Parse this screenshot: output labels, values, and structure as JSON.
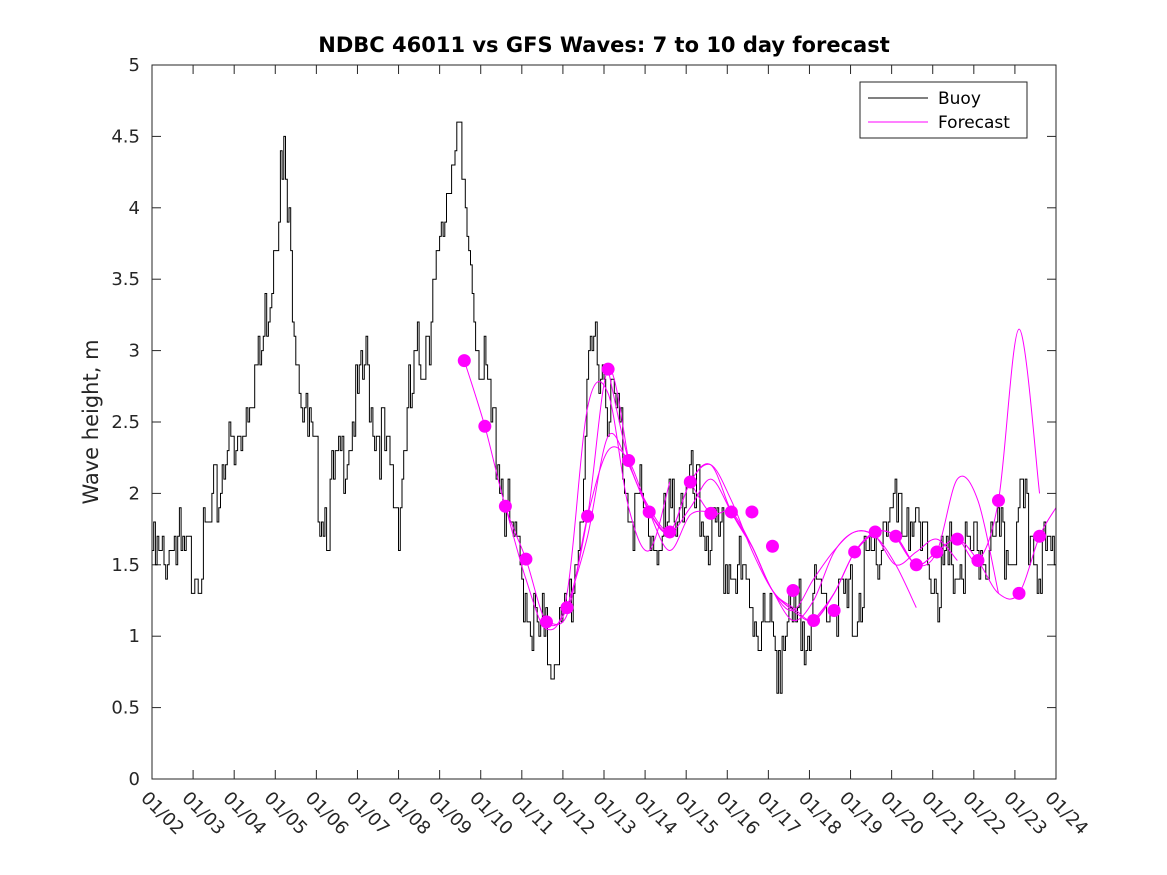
{
  "chart_data": {
    "type": "line",
    "title": "NDBC 46011 vs GFS Waves: 7 to 10 day forecast",
    "xlabel": "",
    "ylabel": "Wave height, m",
    "ylim": [
      0,
      5
    ],
    "yticks": [
      "0",
      "0.5",
      "1",
      "1.5",
      "2",
      "2.5",
      "3",
      "3.5",
      "4",
      "4.5",
      "5"
    ],
    "xlim_days": [
      0,
      22
    ],
    "xticks": [
      "01/02",
      "01/03",
      "01/04",
      "01/05",
      "01/06",
      "01/07",
      "01/08",
      "01/09",
      "01/10",
      "01/11",
      "01/12",
      "01/13",
      "01/14",
      "01/15",
      "01/16",
      "01/17",
      "01/18",
      "01/19",
      "01/20",
      "01/21",
      "01/22",
      "01/23",
      "01/24"
    ],
    "legend": {
      "position": "top-right",
      "entries": [
        "Buoy",
        "Forecast"
      ]
    },
    "colors": {
      "buoy": "#000000",
      "forecast": "#ff00ff"
    },
    "series": [
      {
        "name": "Buoy",
        "x_days": [
          0,
          0.2,
          0.4,
          0.5,
          0.6,
          0.8,
          1.0,
          1.2,
          1.4,
          1.6,
          1.8,
          2.0,
          2.2,
          2.4,
          2.6,
          2.8,
          3.0,
          3.2,
          3.4,
          3.6,
          3.8,
          4.0,
          4.2,
          4.4,
          4.6,
          4.8,
          5.0,
          5.2,
          5.4,
          5.6,
          5.8,
          6.0,
          6.2,
          6.4,
          6.6,
          6.8,
          7.0,
          7.2,
          7.4,
          7.6,
          7.8,
          8.0,
          8.2,
          8.4,
          8.6,
          8.8,
          9.0,
          9.2,
          9.4,
          9.6,
          9.8,
          10.0,
          10.2,
          10.4,
          10.6,
          10.8,
          11.0,
          11.2,
          11.4,
          11.6,
          11.8,
          12.0,
          12.2,
          12.4,
          12.6,
          12.8,
          13.0,
          13.2,
          13.4,
          13.6,
          13.8,
          14.0,
          14.2,
          14.4,
          14.6,
          14.8,
          15.0,
          15.2,
          15.4,
          15.6,
          15.8,
          16.0,
          16.2,
          16.4,
          16.6,
          16.8,
          17.0,
          17.2,
          17.4,
          17.6,
          17.8,
          18.0,
          18.2,
          18.4,
          18.6,
          18.8,
          19.0,
          19.2,
          19.4,
          19.6,
          19.8,
          20.0,
          20.2,
          20.4,
          20.6,
          20.8,
          21.0,
          21.2,
          21.4,
          21.6,
          21.8,
          22.0
        ],
        "values": [
          1.55,
          1.5,
          1.6,
          1.8,
          1.6,
          1.5,
          1.55,
          1.6,
          1.7,
          2.0,
          2.4,
          2.2,
          2.5,
          2.8,
          2.9,
          3.3,
          3.9,
          4.3,
          3.5,
          2.9,
          2.4,
          2.1,
          1.9,
          2.0,
          2.2,
          2.5,
          2.6,
          2.9,
          2.5,
          2.4,
          2.1,
          1.9,
          2.5,
          2.8,
          3.0,
          3.3,
          3.6,
          4.2,
          4.7,
          3.9,
          3.5,
          2.9,
          2.6,
          2.3,
          1.9,
          1.6,
          1.4,
          1.2,
          1.0,
          0.9,
          0.95,
          1.0,
          1.3,
          1.8,
          2.6,
          3.1,
          2.8,
          2.6,
          2.4,
          2.0,
          1.9,
          1.8,
          1.7,
          1.6,
          1.8,
          2.0,
          2.0,
          1.95,
          1.8,
          1.7,
          1.6,
          1.5,
          1.4,
          1.3,
          1.25,
          1.1,
          1.0,
          0.95,
          0.95,
          1.0,
          1.1,
          1.2,
          1.2,
          1.25,
          1.3,
          1.2,
          1.2,
          1.25,
          1.4,
          1.6,
          1.8,
          1.9,
          1.8,
          1.9,
          1.7,
          1.6,
          1.5,
          1.4,
          1.45,
          1.5,
          1.5,
          1.55,
          1.6,
          1.55,
          1.6,
          1.6,
          1.7,
          1.8,
          1.7,
          1.6,
          1.5,
          1.6
        ]
      }
    ],
    "forecast_runs": [
      {
        "x_days": [
          7.6,
          8.1,
          8.6,
          9.1,
          9.6,
          10.1,
          10.6,
          11.1,
          11.6
        ],
        "values": [
          2.93,
          2.47,
          1.91,
          1.54,
          1.1,
          1.2,
          1.84,
          2.87,
          2.23
        ]
      },
      {
        "x_days": [
          8.6,
          9.1,
          9.6,
          10.1,
          10.6,
          11.1,
          11.6,
          12.1,
          12.6
        ],
        "values": [
          1.91,
          1.4,
          1.05,
          1.3,
          2.6,
          2.7,
          1.9,
          1.6,
          2.08
        ]
      },
      {
        "x_days": [
          9.6,
          10.1,
          10.6,
          11.1,
          11.6,
          12.1,
          12.6,
          13.1,
          13.6
        ],
        "values": [
          1.1,
          1.15,
          1.84,
          2.3,
          2.23,
          1.87,
          1.6,
          1.85,
          1.87
        ]
      },
      {
        "x_days": [
          10.1,
          10.6,
          11.1,
          11.6,
          12.1,
          12.6,
          13.1,
          13.6,
          14.1,
          14.6
        ],
        "values": [
          1.2,
          1.7,
          2.4,
          2.2,
          1.87,
          1.73,
          2.08,
          2.2,
          1.87,
          1.63
        ]
      },
      {
        "x_days": [
          11.1,
          11.6,
          12.1,
          12.6,
          13.1,
          13.6,
          14.1,
          14.6,
          15.1,
          15.6
        ],
        "values": [
          2.87,
          2.23,
          1.9,
          1.73,
          1.9,
          2.1,
          1.87,
          1.63,
          1.32,
          1.18
        ]
      },
      {
        "x_days": [
          12.1,
          12.6,
          13.1,
          13.6,
          14.1,
          14.6,
          15.1,
          15.6,
          16.1,
          16.6
        ],
        "values": [
          1.87,
          1.73,
          2.08,
          2.2,
          1.95,
          1.6,
          1.32,
          1.18,
          1.11,
          1.3
        ]
      },
      {
        "x_days": [
          13.1,
          13.6,
          14.1,
          14.6,
          15.1,
          15.6,
          16.1,
          16.6,
          17.1,
          17.6
        ],
        "values": [
          2.08,
          1.86,
          1.87,
          1.63,
          1.32,
          1.2,
          1.11,
          1.3,
          1.59,
          1.73
        ]
      },
      {
        "x_days": [
          14.1,
          14.6,
          15.1,
          15.6,
          16.1,
          16.6,
          17.1,
          17.6,
          18.1,
          18.6
        ],
        "values": [
          1.87,
          1.63,
          1.32,
          1.18,
          1.4,
          1.6,
          1.73,
          1.7,
          1.5,
          1.2
        ]
      },
      {
        "x_days": [
          15.1,
          15.6,
          16.1,
          16.6,
          17.1,
          17.6,
          18.1,
          18.6,
          19.1,
          19.6
        ],
        "values": [
          1.32,
          1.11,
          1.25,
          1.59,
          1.73,
          1.7,
          1.5,
          1.59,
          1.68,
          1.53
        ]
      },
      {
        "x_days": [
          16.1,
          16.6,
          17.1,
          17.6,
          18.1,
          18.6,
          19.1,
          19.6,
          20.1,
          20.6
        ],
        "values": [
          1.11,
          1.3,
          1.59,
          1.73,
          1.7,
          1.5,
          1.59,
          2.1,
          1.95,
          1.3
        ]
      },
      {
        "x_days": [
          17.1,
          17.6,
          18.1,
          18.6,
          19.1,
          19.6,
          20.1,
          20.6,
          21.1,
          21.6
        ],
        "values": [
          1.59,
          1.73,
          1.7,
          1.5,
          1.59,
          1.68,
          1.53,
          1.95,
          3.15,
          2.0
        ]
      },
      {
        "x_days": [
          18.1,
          18.6,
          19.1,
          19.6,
          20.1,
          20.6,
          21.1,
          21.6,
          22.0
        ],
        "values": [
          1.7,
          1.5,
          1.59,
          1.68,
          1.53,
          1.3,
          1.3,
          1.7,
          1.9
        ]
      }
    ],
    "forecast_points": {
      "x_days": [
        7.6,
        8.1,
        8.6,
        9.1,
        9.6,
        10.1,
        10.6,
        11.1,
        11.6,
        12.1,
        12.6,
        13.1,
        13.6,
        14.1,
        14.6,
        15.1,
        15.6,
        16.1,
        16.6,
        17.1,
        17.6,
        18.1,
        18.6,
        19.1,
        19.6,
        20.1,
        20.6,
        21.1,
        21.6
      ],
      "values": [
        2.93,
        2.47,
        1.91,
        1.54,
        1.1,
        1.2,
        1.84,
        2.87,
        2.23,
        1.87,
        1.73,
        2.08,
        1.86,
        1.87,
        1.87,
        1.63,
        1.32,
        1.11,
        1.18,
        1.59,
        1.73,
        1.7,
        1.5,
        1.59,
        1.68,
        1.53,
        1.95,
        1.3,
        1.7
      ]
    }
  }
}
